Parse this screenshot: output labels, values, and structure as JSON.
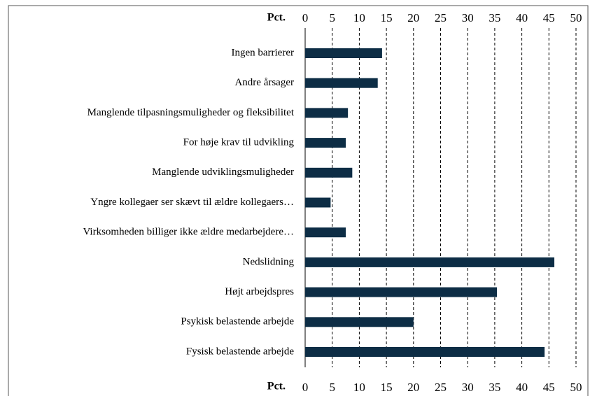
{
  "chart_data": {
    "type": "bar",
    "orientation": "horizontal",
    "xlabel": "Pct.",
    "categories": [
      "Ingen barrierer",
      "Andre årsager",
      "Manglende tilpasningsmuligheder og fleksibilitet",
      "For høje krav til udvikling",
      "Manglende udviklingsmuligheder",
      "Yngre kollegaer ser skævt til ældre kollegaers…",
      "Virksomheden billiger ikke ældre medarbejdere…",
      "Nedslidning",
      "Højt arbejdspres",
      "Psykisk belastende arbejde",
      "Fysisk belastende arbejde"
    ],
    "values": [
      14.2,
      13.4,
      7.9,
      7.5,
      8.7,
      4.7,
      7.5,
      46,
      35.4,
      20,
      44.2
    ],
    "color": "#0d2d45",
    "xlim": [
      0,
      50
    ],
    "xticks": [
      0,
      5,
      10,
      15,
      20,
      25,
      30,
      35,
      40,
      45,
      50
    ],
    "grid": true
  }
}
